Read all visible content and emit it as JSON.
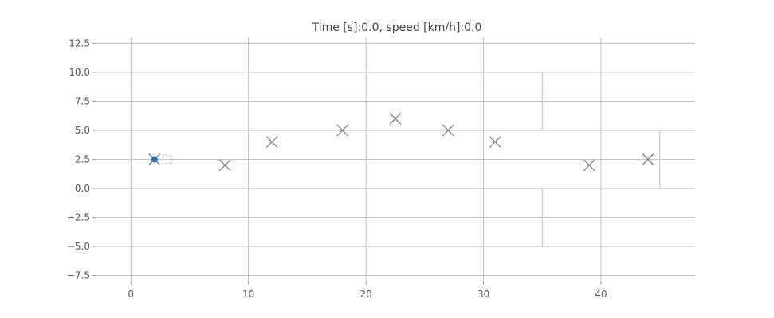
{
  "chart_data": {
    "type": "scatter",
    "title": "Time [s]:0.0, speed [km/h]:0.0",
    "xlabel": "",
    "ylabel": "",
    "xlim": [
      -3,
      48
    ],
    "ylim": [
      -8,
      13
    ],
    "x_ticks": [
      0,
      10,
      20,
      30,
      40
    ],
    "x_tick_labels": [
      "0",
      "10",
      "20",
      "30",
      "40"
    ],
    "y_ticks": [
      12.5,
      10.0,
      7.5,
      5.0,
      2.5,
      0.0,
      -2.5,
      -5.0,
      -7.5
    ],
    "y_tick_labels": [
      "12.5",
      "10.0",
      "7.5",
      "5.0",
      "2.5",
      "0.0",
      "−2.5",
      "−5.0",
      "−7.5"
    ],
    "grid": true,
    "track_outline": {
      "x": [
        0,
        10,
        10,
        35,
        35,
        45,
        45,
        35,
        35,
        10,
        10,
        0,
        0
      ],
      "y": [
        5,
        5,
        10,
        10,
        5,
        5,
        0,
        0,
        -5,
        -5,
        0,
        0,
        5
      ]
    },
    "waypoints": {
      "x": [
        2,
        8,
        12,
        18,
        22.5,
        27,
        31,
        39,
        44
      ],
      "y": [
        2.5,
        2,
        4,
        5,
        6,
        5,
        4,
        2,
        2.5
      ]
    },
    "vehicle": {
      "x": 2,
      "y": 2.5
    },
    "colors": {
      "vehicle": "#1f77b4",
      "waypoint": "#7f7f7f",
      "track": "#c8c8c8",
      "grid": "#b0b0b0"
    }
  }
}
